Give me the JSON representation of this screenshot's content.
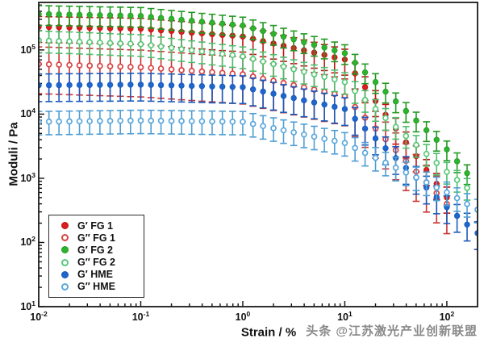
{
  "figure": {
    "watermark": "头条 @江苏激光产业创新联盟",
    "background": "#ffffff"
  },
  "chart_data": {
    "type": "scatter",
    "title": "",
    "xlabel": "Strain / %",
    "ylabel": "Moduli / Pa",
    "x_scale": "log",
    "y_scale": "log",
    "xlim": [
      0.01,
      200
    ],
    "ylim": [
      10,
      550000
    ],
    "x_major_tick_exponents": [
      -2,
      -1,
      0,
      1,
      2
    ],
    "y_major_tick_exponents": [
      1,
      2,
      3,
      4,
      5
    ],
    "grid": false,
    "error_bars": true,
    "legend_position": "lower-left",
    "strain_percent": [
      0.01,
      0.0126,
      0.0158,
      0.02,
      0.0251,
      0.0316,
      0.0398,
      0.0501,
      0.0631,
      0.0794,
      0.1,
      0.126,
      0.158,
      0.2,
      0.251,
      0.316,
      0.398,
      0.501,
      0.631,
      0.794,
      1,
      1.26,
      1.58,
      2,
      2.51,
      3.16,
      3.98,
      5.01,
      6.31,
      7.94,
      10,
      12.6,
      15.8,
      20,
      25.1,
      31.6,
      39.8,
      50.1,
      63.1,
      79.4,
      100,
      126,
      158,
      200
    ],
    "series": [
      {
        "name": "G′ FG 1",
        "marker": "filled",
        "color": "#d81e1e",
        "err_color": "#c21414",
        "err_up_factor": 1.45,
        "err_down_factor": 1.75,
        "values": [
          229000,
          227000,
          226000,
          224000,
          223000,
          221000,
          220000,
          218000,
          217000,
          215000,
          214000,
          208000,
          202000,
          197000,
          191000,
          186000,
          181000,
          176000,
          171000,
          167000,
          162000,
          149000,
          137000,
          126000,
          116000,
          107000,
          98600,
          90800,
          83600,
          76900,
          70800,
          43200,
          26300,
          16000,
          9770,
          5960,
          3630,
          2210,
          1350,
          822,
          501
        ]
      },
      {
        "name": "G″ FG 1",
        "marker": "open",
        "color": "#d84444",
        "err_color": "#cc3333",
        "err_up_factor": 1.85,
        "err_down_factor": 2.9,
        "values": [
          60300,
          59600,
          58900,
          58200,
          57500,
          56900,
          56200,
          55600,
          55000,
          54300,
          53700,
          52400,
          51100,
          49800,
          48500,
          47300,
          46100,
          45000,
          43900,
          42800,
          41700,
          38500,
          35600,
          33000,
          30500,
          28200,
          26100,
          24100,
          22300,
          20600,
          19100,
          12900,
          8790,
          5970,
          4060,
          2750,
          1870,
          1270,
          863,
          586,
          398
        ]
      },
      {
        "name": "G′ FG 2",
        "marker": "filled",
        "color": "#2db42d",
        "err_color": "#229922",
        "err_up_factor": 1.35,
        "err_down_factor": 1.5,
        "values": [
          363000,
          361000,
          358000,
          356000,
          353000,
          351000,
          348000,
          346000,
          344000,
          341000,
          339000,
          327000,
          316000,
          305000,
          295000,
          285000,
          275000,
          266000,
          257000,
          248000,
          240000,
          217000,
          197000,
          178000,
          161000,
          146000,
          132000,
          120000,
          109000,
          98400,
          89100,
          63100,
          44700,
          31600,
          22400,
          15800,
          11200,
          7940,
          5620,
          3980,
          2820,
          1840,
          1200
        ]
      },
      {
        "name": "G″ FG 2",
        "marker": "open",
        "color": "#58c878",
        "err_color": "#4cbd6c",
        "err_up_factor": 1.4,
        "err_down_factor": 1.55,
        "values": [
          141000,
          139000,
          137000,
          136000,
          134000,
          132000,
          130000,
          128000,
          126000,
          125000,
          123000,
          118000,
          113000,
          108000,
          103000,
          98900,
          94600,
          90600,
          86700,
          83000,
          79400,
          72400,
          66100,
          60300,
          55000,
          50100,
          45700,
          41700,
          38000,
          34700,
          31600,
          22900,
          16600,
          12000,
          8710,
          6310,
          4570,
          3310,
          2400,
          1740,
          1260,
          944,
          708
        ]
      },
      {
        "name": "G′ HME",
        "marker": "filled",
        "color": "#1f66cc",
        "err_color": "#1a5abc",
        "err_up_factor": 1.5,
        "err_down_factor": 1.8,
        "values": [
          28200,
          28200,
          28300,
          28400,
          28400,
          28500,
          28600,
          28600,
          28700,
          28800,
          28800,
          28600,
          28300,
          28100,
          27800,
          27500,
          27300,
          27000,
          26800,
          26500,
          26300,
          24300,
          22500,
          20800,
          19200,
          17800,
          16400,
          15200,
          14100,
          13000,
          12000,
          8450,
          5940,
          4180,
          2940,
          2070,
          1450,
          1020,
          718,
          505,
          355,
          260,
          190,
          140
        ]
      },
      {
        "name": "G″ HME",
        "marker": "open",
        "color": "#5aa7dc",
        "err_color": "#4f9ed4",
        "err_up_factor": 1.45,
        "err_down_factor": 1.6,
        "values": [
          7590,
          7630,
          7660,
          7690,
          7730,
          7760,
          7800,
          7830,
          7870,
          7910,
          7940,
          7910,
          7870,
          7830,
          7800,
          7760,
          7730,
          7690,
          7660,
          7620,
          7590,
          7030,
          6520,
          6040,
          5600,
          5190,
          4810,
          4460,
          4130,
          3830,
          3550,
          2970,
          2490,
          2080,
          1750,
          1460,
          1230,
          1030,
          860,
          719,
          603,
          490,
          398,
          324
        ]
      }
    ]
  }
}
